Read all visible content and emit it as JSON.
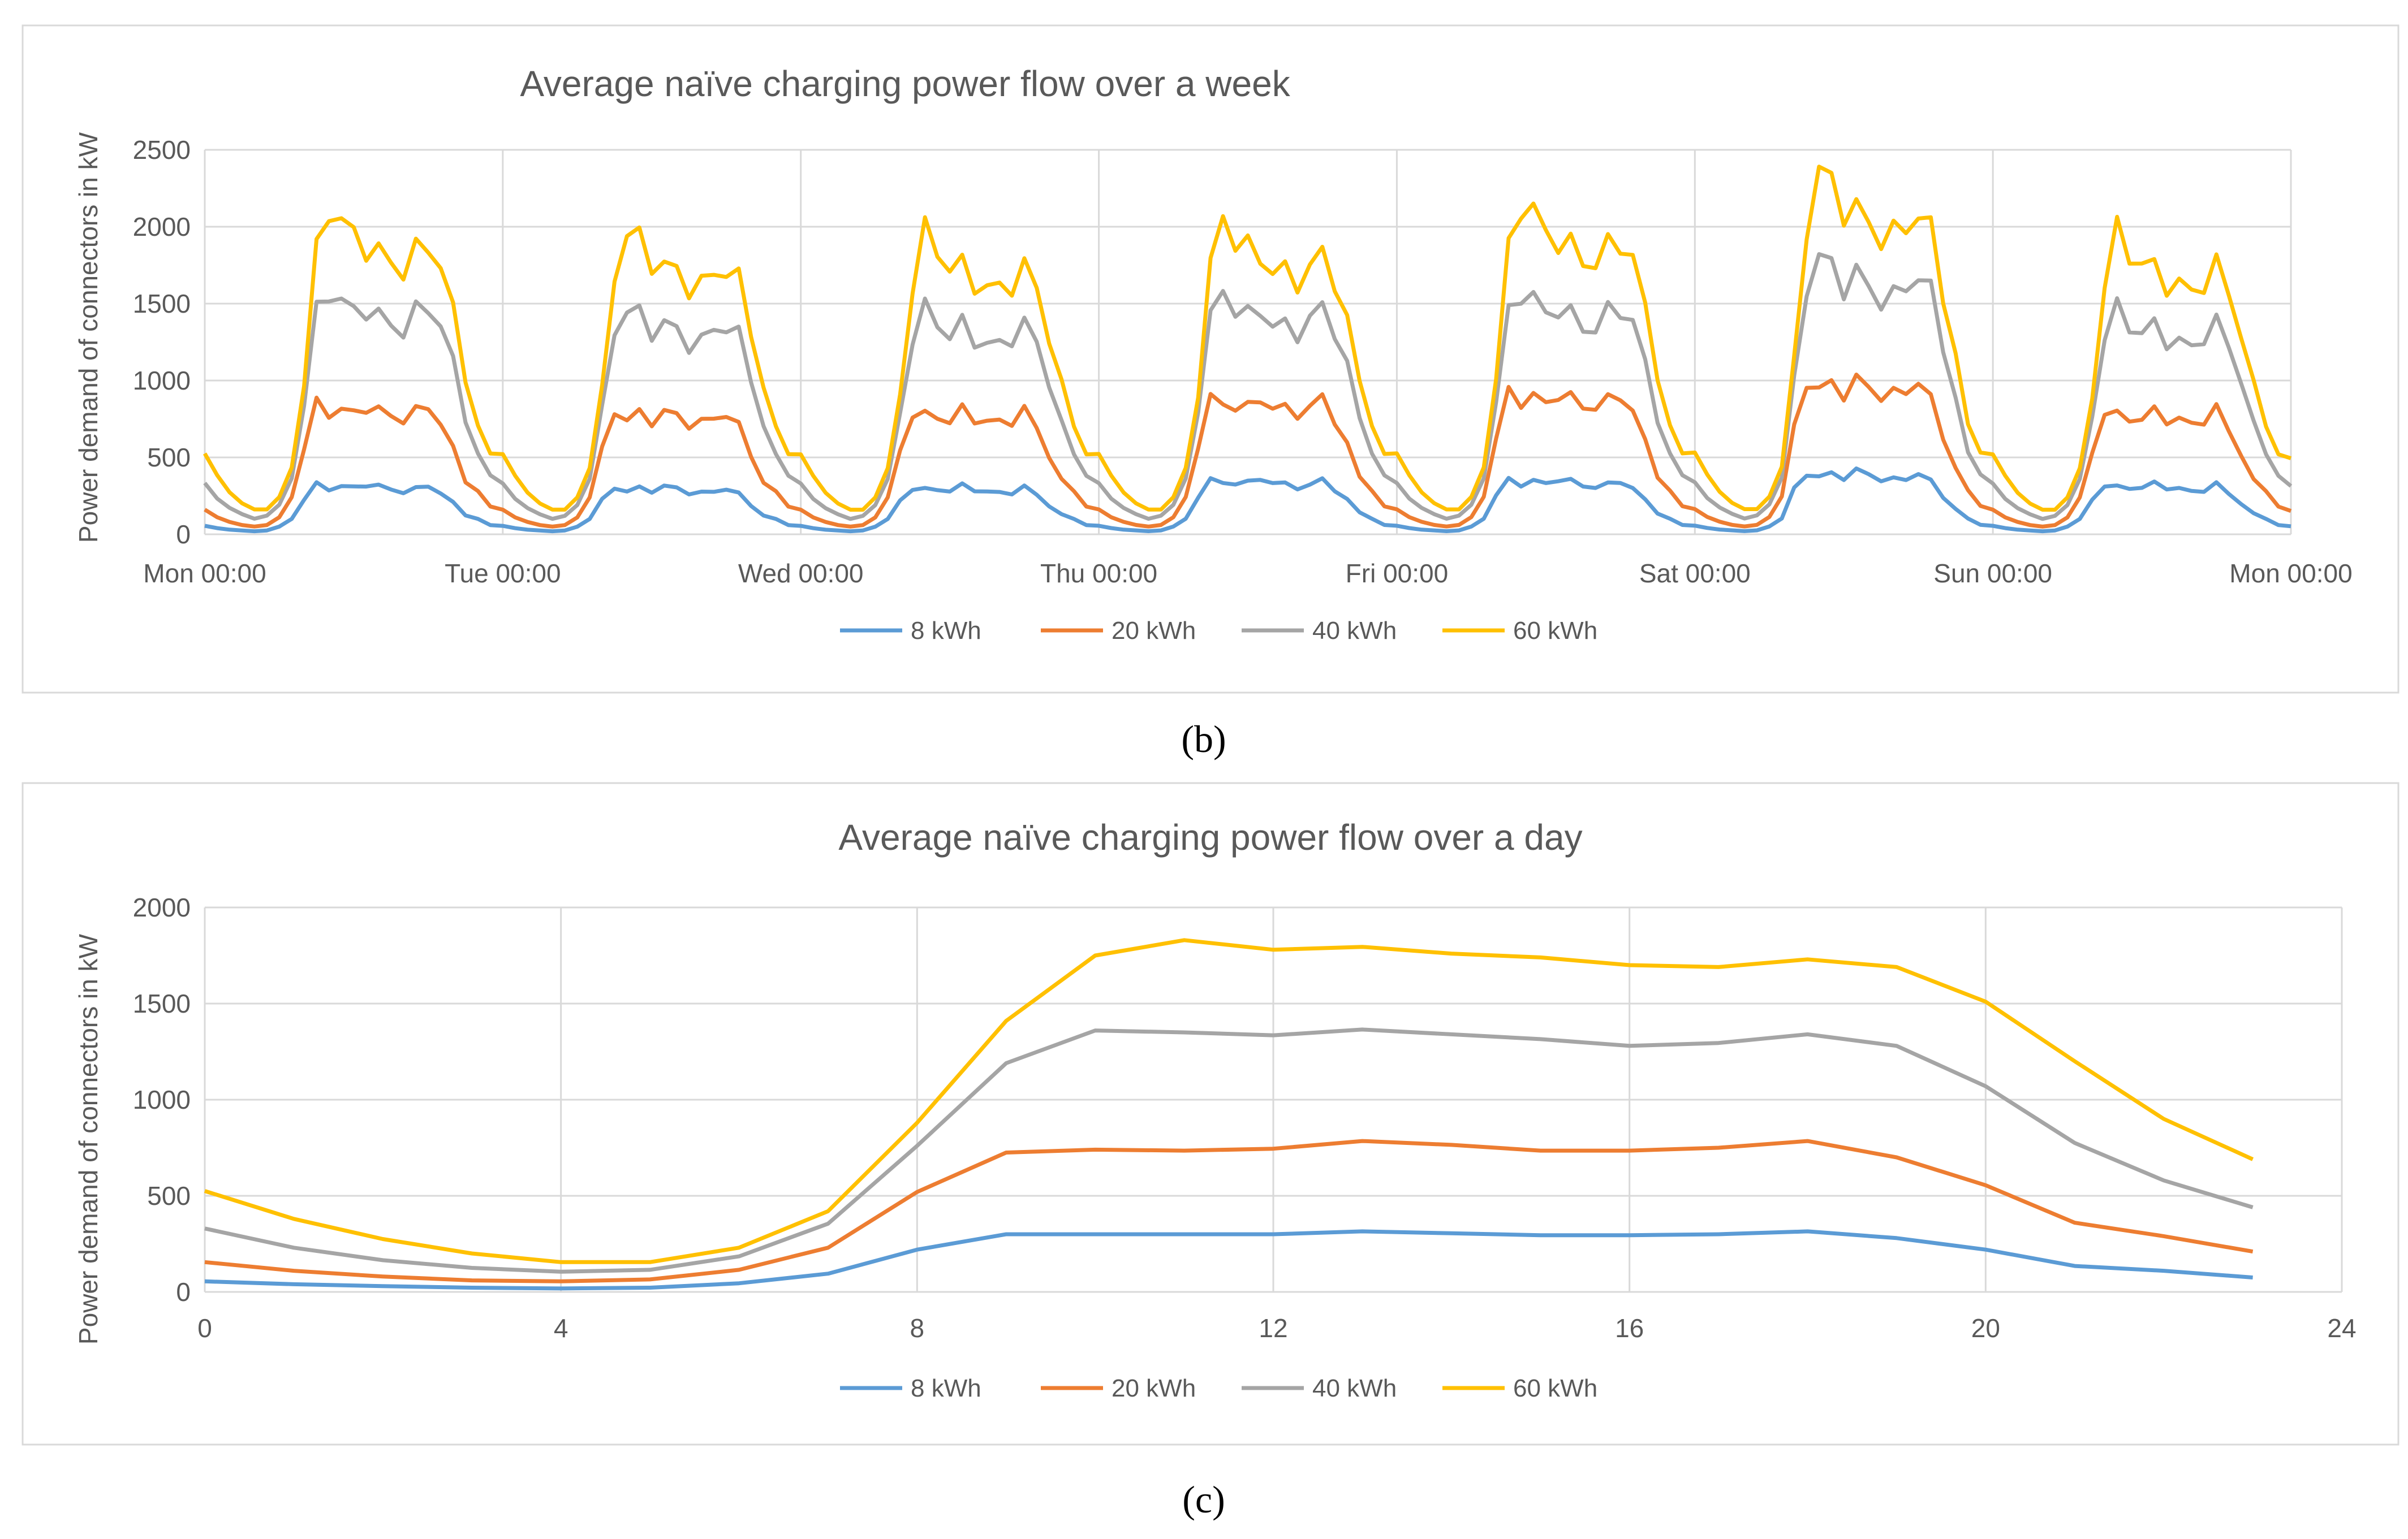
{
  "chart_data": [
    {
      "type": "line",
      "title": "Average naïve charging  power flow over a week",
      "ylabel": "Power demand of connectors in kW",
      "xlabel": "",
      "ylim": [
        0,
        2500
      ],
      "yticks": [
        "0",
        "500",
        "1000",
        "1500",
        "2000",
        "2500"
      ],
      "xlim": [
        0,
        7
      ],
      "xtick_labels": [
        "Mon 00:00",
        "Tue 00:00",
        "Wed 00:00",
        "Thu 00:00",
        "Fri 00:00",
        "Sat 00:00",
        "Sun 00:00",
        "Mon 00:00"
      ],
      "x_unit": "days",
      "grid": true,
      "legend_position": "bottom",
      "caption": "(b)",
      "daily_profile_hours": [
        0,
        1,
        2,
        3,
        4,
        5,
        6,
        7,
        8,
        9,
        10,
        11,
        12,
        13,
        14,
        15,
        16,
        17,
        18,
        19,
        20,
        21,
        22,
        23
      ],
      "series": [
        {
          "name": "8 kWh",
          "color": "#5B9BD5",
          "day_peak_scales": [
            1.0,
            0.95,
            0.95,
            1.1,
            1.1,
            1.25,
            1.0
          ],
          "daily_profile": [
            55,
            40,
            30,
            25,
            20,
            25,
            50,
            100,
            230,
            320,
            300,
            310,
            300,
            330,
            310,
            290,
            280,
            290,
            320,
            270,
            200,
            130,
            100,
            60
          ]
        },
        {
          "name": "20 kWh",
          "color": "#ED7D31",
          "day_peak_scales": [
            1.05,
            1.0,
            1.0,
            1.1,
            1.15,
            1.25,
            1.0
          ],
          "daily_profile": [
            160,
            110,
            80,
            60,
            50,
            60,
            110,
            240,
            540,
            800,
            760,
            770,
            740,
            800,
            760,
            730,
            720,
            750,
            800,
            690,
            520,
            340,
            280,
            180
          ]
        },
        {
          "name": "40 kWh",
          "color": "#A5A5A5",
          "day_peak_scales": [
            1.1,
            1.02,
            1.0,
            1.08,
            1.1,
            1.25,
            1.0
          ],
          "daily_profile": [
            330,
            230,
            170,
            130,
            100,
            120,
            190,
            360,
            780,
            1300,
            1450,
            1380,
            1300,
            1350,
            1280,
            1230,
            1220,
            1300,
            1350,
            1250,
            1000,
            700,
            520,
            380
          ]
        },
        {
          "name": "60 kWh",
          "color": "#FFC000",
          "day_peak_scales": [
            1.1,
            1.02,
            1.0,
            1.05,
            1.12,
            1.22,
            1.0
          ],
          "daily_profile": [
            520,
            380,
            270,
            200,
            160,
            160,
            240,
            430,
            900,
            1650,
            1950,
            1850,
            1750,
            1720,
            1650,
            1600,
            1580,
            1650,
            1720,
            1600,
            1300,
            950,
            700,
            520
          ]
        }
      ]
    },
    {
      "type": "line",
      "title": "Average naïve charging power flow over a day",
      "ylabel": "Power demand of connectors in kW",
      "xlabel": "",
      "ylim": [
        0,
        2000
      ],
      "yticks": [
        "0",
        "500",
        "1000",
        "1500",
        "2000"
      ],
      "xlim": [
        0,
        24
      ],
      "xtick_labels": [
        "0",
        "4",
        "8",
        "12",
        "16",
        "20",
        "24"
      ],
      "grid": true,
      "legend_position": "bottom",
      "caption": "(c)",
      "x": [
        0,
        1,
        2,
        3,
        4,
        5,
        6,
        7,
        8,
        9,
        10,
        11,
        12,
        13,
        14,
        15,
        16,
        17,
        18,
        19,
        20,
        21,
        22,
        23
      ],
      "series": [
        {
          "name": "8 kWh",
          "color": "#5B9BD5",
          "values": [
            55,
            40,
            30,
            22,
            18,
            22,
            45,
            95,
            220,
            300,
            300,
            300,
            300,
            315,
            305,
            295,
            295,
            300,
            315,
            280,
            220,
            135,
            110,
            75
          ]
        },
        {
          "name": "20 kWh",
          "color": "#ED7D31",
          "values": [
            155,
            110,
            80,
            60,
            55,
            65,
            115,
            230,
            520,
            725,
            740,
            735,
            745,
            785,
            765,
            735,
            735,
            750,
            785,
            700,
            555,
            360,
            290,
            210
          ]
        },
        {
          "name": "40 kWh",
          "color": "#A5A5A5",
          "values": [
            330,
            230,
            165,
            125,
            105,
            115,
            185,
            355,
            760,
            1190,
            1360,
            1350,
            1335,
            1365,
            1340,
            1315,
            1280,
            1295,
            1340,
            1280,
            1070,
            775,
            580,
            440
          ]
        },
        {
          "name": "60 kWh",
          "color": "#FFC000",
          "values": [
            525,
            380,
            275,
            200,
            155,
            155,
            230,
            420,
            880,
            1410,
            1750,
            1830,
            1780,
            1795,
            1760,
            1740,
            1700,
            1690,
            1730,
            1690,
            1510,
            1200,
            900,
            690
          ]
        }
      ]
    }
  ]
}
